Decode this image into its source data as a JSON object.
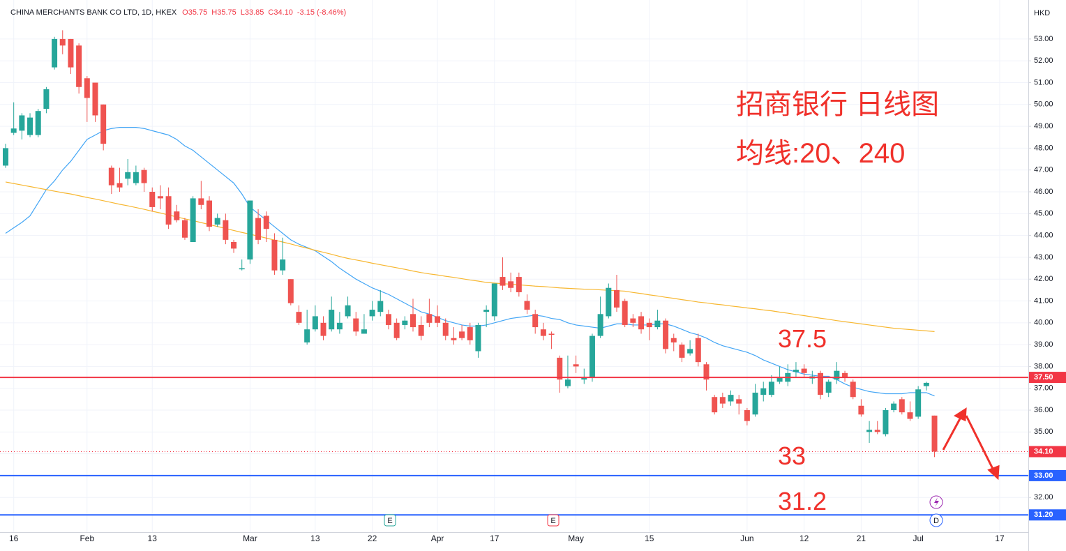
{
  "chart_data": {
    "type": "candlestick",
    "title": "CHINA MERCHANTS BANK CO LTD, 1D, HKEX",
    "ohlc_labels": [
      "O35.75",
      "H35.75",
      "L33.85",
      "C34.10",
      "-3.15 (-8.46%)"
    ],
    "currency": "HKD",
    "up_color": "#26a69a",
    "down_color": "#ef5350",
    "grid": true,
    "categories": [
      null,
      "16",
      null,
      null,
      null,
      null,
      null,
      null,
      null,
      null,
      "Feb",
      null,
      null,
      null,
      null,
      null,
      null,
      null,
      "13",
      null,
      null,
      null,
      null,
      null,
      null,
      null,
      null,
      null,
      null,
      null,
      "Mar",
      null,
      null,
      null,
      null,
      null,
      null,
      null,
      "13",
      null,
      null,
      null,
      null,
      null,
      null,
      "22",
      null,
      null,
      null,
      null,
      null,
      null,
      null,
      "Apr",
      null,
      null,
      null,
      null,
      null,
      null,
      "17",
      null,
      null,
      null,
      null,
      null,
      null,
      null,
      null,
      null,
      "May",
      null,
      null,
      null,
      null,
      null,
      null,
      null,
      null,
      "15",
      null,
      null,
      null,
      null,
      null,
      null,
      null,
      null,
      null,
      null,
      null,
      "Jun",
      null,
      null,
      null,
      null,
      null,
      null,
      "12",
      null,
      null,
      null,
      null,
      null,
      null,
      "21",
      null,
      null,
      null,
      null,
      null,
      null,
      "Jul",
      null,
      null,
      null,
      null,
      null,
      null,
      null,
      null,
      null,
      "17",
      null,
      null
    ],
    "open": [
      47.2,
      48.7,
      48.8,
      48.6,
      48.6,
      49.8,
      51.7,
      53.0,
      53.0,
      52.7,
      51.2,
      51.0,
      50.0,
      47.1,
      46.4,
      46.6,
      46.4,
      47.0,
      46.0,
      45.8,
      45.8,
      45.1,
      44.7,
      43.7,
      45.7,
      45.6,
      44.5,
      44.7,
      43.7,
      42.45,
      42.9,
      44.8,
      44.9,
      43.8,
      42.4,
      42.0,
      40.5,
      39.1,
      39.7,
      40.0,
      39.7,
      39.7,
      40.3,
      40.2,
      39.5,
      40.3,
      40.5,
      40.4,
      40.0,
      39.9,
      40.4,
      39.9,
      40.4,
      40.3,
      40.0,
      39.3,
      39.6,
      39.8,
      38.7,
      40.5,
      40.3,
      42.1,
      41.9,
      42.1,
      41.0,
      40.4,
      39.7,
      39.5,
      38.4,
      37.1,
      38.1,
      37.4,
      37.5,
      39.4,
      40.3,
      41.5,
      41.0,
      40.2,
      40.3,
      40.0,
      39.8,
      40.1,
      39.3,
      39.0,
      38.6,
      39.3,
      38.1,
      36.6,
      36.6,
      36.4,
      36.5,
      36.0,
      35.8,
      36.7,
      36.7,
      37.3,
      37.3,
      37.75,
      37.9,
      37.45,
      37.7,
      36.8,
      37.4,
      37.7,
      37.3,
      36.2,
      35.0,
      35.1,
      34.9,
      36.0,
      36.5,
      35.9,
      35.7,
      37.1,
      35.75,
      null,
      null,
      null,
      null,
      null,
      null,
      null,
      null,
      null,
      null
    ],
    "high": [
      48.2,
      50.1,
      49.6,
      49.6,
      49.8,
      50.8,
      53.1,
      53.4,
      53.0,
      52.8,
      51.3,
      51.0,
      50.0,
      47.2,
      47.1,
      47.5,
      47.2,
      47.1,
      46.2,
      46.3,
      46.2,
      45.4,
      44.8,
      45.8,
      46.5,
      45.8,
      45.0,
      45.0,
      43.8,
      42.9,
      45.6,
      45.2,
      45.1,
      44.1,
      43.9,
      42.0,
      40.8,
      40.6,
      40.8,
      40.3,
      41.2,
      40.5,
      41.2,
      40.5,
      40.4,
      41.0,
      41.5,
      40.6,
      40.2,
      40.3,
      41.1,
      40.3,
      41.1,
      40.8,
      40.2,
      39.8,
      39.9,
      40.0,
      40.0,
      40.8,
      41.8,
      43.0,
      42.3,
      42.3,
      41.3,
      40.6,
      40.0,
      39.6,
      38.5,
      38.5,
      38.5,
      37.9,
      39.5,
      41.2,
      41.8,
      42.2,
      41.1,
      40.4,
      40.5,
      40.2,
      40.6,
      40.2,
      39.5,
      39.1,
      39.2,
      39.5,
      38.2,
      36.7,
      36.8,
      36.9,
      36.7,
      36.1,
      37.2,
      37.3,
      37.6,
      38.0,
      38.1,
      38.2,
      38.1,
      37.8,
      37.8,
      37.4,
      38.2,
      37.8,
      37.4,
      36.5,
      35.5,
      35.5,
      36.1,
      36.4,
      36.6,
      36.4,
      37.1,
      37.3,
      35.75,
      null,
      null,
      null,
      null,
      null,
      null,
      null,
      null,
      null,
      null
    ],
    "low": [
      47.1,
      48.6,
      48.4,
      48.5,
      48.5,
      49.6,
      51.6,
      52.3,
      51.4,
      50.5,
      49.2,
      49.2,
      47.9,
      45.9,
      46.0,
      46.3,
      46.3,
      46.0,
      45.1,
      45.2,
      44.3,
      44.6,
      43.8,
      43.7,
      45.2,
      44.2,
      44.4,
      43.6,
      43.2,
      42.4,
      42.7,
      43.6,
      43.7,
      42.2,
      42.2,
      40.8,
      39.9,
      39.0,
      39.6,
      39.2,
      39.6,
      39.5,
      40.2,
      39.4,
      39.5,
      40.1,
      40.3,
      39.7,
      39.2,
      39.7,
      39.6,
      39.2,
      39.8,
      39.8,
      39.2,
      39.0,
      39.2,
      39.0,
      38.4,
      39.8,
      40.1,
      41.5,
      41.4,
      41.2,
      40.4,
      39.5,
      39.2,
      38.8,
      36.8,
      37.0,
      37.7,
      37.2,
      37.3,
      39.3,
      40.2,
      40.5,
      39.8,
      39.8,
      39.5,
      39.2,
      39.7,
      38.6,
      38.7,
      38.2,
      38.5,
      38.0,
      36.9,
      35.8,
      36.1,
      36.2,
      35.8,
      35.3,
      35.7,
      36.4,
      36.6,
      37.2,
      37.1,
      37.5,
      37.5,
      37.2,
      36.5,
      36.6,
      37.2,
      37.3,
      36.5,
      35.7,
      34.5,
      34.9,
      34.8,
      35.9,
      35.8,
      35.5,
      35.6,
      36.9,
      33.85,
      null,
      null,
      null,
      null,
      null,
      null,
      null,
      null,
      null,
      null
    ],
    "close": [
      48.0,
      48.9,
      49.5,
      49.4,
      49.7,
      50.7,
      53.0,
      52.7,
      51.7,
      50.8,
      50.3,
      49.5,
      48.2,
      46.3,
      46.2,
      46.9,
      46.9,
      46.4,
      45.3,
      45.7,
      44.5,
      44.7,
      43.9,
      45.7,
      45.4,
      44.4,
      44.8,
      43.8,
      43.4,
      42.5,
      45.6,
      43.8,
      44.3,
      42.4,
      42.9,
      40.9,
      40.0,
      39.7,
      40.3,
      39.4,
      40.6,
      40.0,
      40.8,
      39.6,
      39.7,
      40.6,
      41.0,
      39.9,
      39.3,
      40.1,
      39.8,
      39.4,
      40.0,
      40.0,
      39.4,
      39.2,
      39.3,
      39.2,
      39.9,
      40.6,
      41.8,
      41.7,
      41.6,
      41.4,
      40.6,
      39.8,
      39.4,
      39.45,
      37.4,
      37.4,
      38.0,
      37.5,
      39.4,
      40.4,
      41.6,
      40.7,
      39.9,
      40.0,
      39.7,
      39.8,
      40.1,
      38.8,
      39.1,
      38.4,
      38.8,
      38.2,
      37.4,
      35.9,
      36.3,
      36.7,
      36.3,
      35.5,
      36.8,
      37.0,
      37.3,
      37.5,
      37.7,
      37.85,
      37.7,
      37.55,
      36.7,
      37.3,
      37.8,
      37.5,
      36.6,
      35.8,
      35.1,
      35.0,
      36.0,
      36.3,
      35.9,
      35.6,
      36.95,
      37.25,
      34.1,
      null,
      null,
      null,
      null,
      null,
      null,
      null,
      null,
      null,
      null
    ],
    "lines": [
      {
        "color": "#42a5f5",
        "values": [
          44.1,
          44.35,
          44.6,
          44.9,
          45.5,
          46.1,
          46.5,
          47.0,
          47.4,
          47.9,
          48.4,
          48.6,
          48.8,
          48.9,
          48.95,
          48.95,
          48.95,
          48.9,
          48.8,
          48.7,
          48.6,
          48.4,
          48.1,
          47.9,
          47.6,
          47.3,
          47.0,
          46.7,
          46.4,
          45.9,
          45.3,
          45.0,
          44.7,
          44.4,
          44.1,
          43.8,
          43.6,
          43.45,
          43.3,
          43.05,
          42.8,
          42.5,
          42.25,
          42.0,
          41.8,
          41.6,
          41.45,
          41.3,
          41.1,
          40.9,
          40.7,
          40.5,
          40.4,
          40.25,
          40.1,
          40.0,
          39.9,
          39.85,
          39.85,
          39.9,
          40.0,
          40.1,
          40.2,
          40.25,
          40.3,
          40.35,
          40.3,
          40.2,
          40.15,
          40.0,
          39.9,
          39.85,
          39.8,
          39.75,
          39.85,
          39.95,
          39.95,
          39.9,
          39.9,
          39.9,
          39.95,
          39.95,
          39.85,
          39.7,
          39.55,
          39.45,
          39.3,
          39.1,
          38.95,
          38.85,
          38.75,
          38.65,
          38.5,
          38.3,
          38.15,
          38.0,
          37.85,
          37.75,
          37.65,
          37.6,
          37.55,
          37.55,
          37.4,
          37.2,
          37.05,
          36.95,
          36.85,
          36.8,
          36.75,
          36.75,
          36.75,
          36.8,
          36.8,
          36.8,
          36.65,
          null,
          null,
          null,
          null,
          null,
          null,
          null,
          null,
          null,
          null
        ]
      },
      {
        "color": "#f7b731",
        "values": [
          46.45,
          46.38,
          46.31,
          46.24,
          46.17,
          46.1,
          46.03,
          45.96,
          45.9,
          45.82,
          45.74,
          45.67,
          45.59,
          45.51,
          45.43,
          45.36,
          45.28,
          45.2,
          45.11,
          45.03,
          44.94,
          44.85,
          44.76,
          44.68,
          44.59,
          44.5,
          44.41,
          44.32,
          44.23,
          44.14,
          44.06,
          43.97,
          43.88,
          43.79,
          43.7,
          43.61,
          43.51,
          43.42,
          43.32,
          43.23,
          43.14,
          43.04,
          42.95,
          42.88,
          42.81,
          42.73,
          42.66,
          42.59,
          42.52,
          42.45,
          42.37,
          42.3,
          42.24,
          42.19,
          42.13,
          42.08,
          42.02,
          41.96,
          41.91,
          41.85,
          41.82,
          41.79,
          41.77,
          41.74,
          41.71,
          41.68,
          41.66,
          41.63,
          41.6,
          41.58,
          41.56,
          41.54,
          41.53,
          41.51,
          41.49,
          41.47,
          41.45,
          41.39,
          41.34,
          41.28,
          41.23,
          41.17,
          41.12,
          41.06,
          41.01,
          40.95,
          40.91,
          40.86,
          40.82,
          40.77,
          40.73,
          40.68,
          40.64,
          40.59,
          40.55,
          40.49,
          40.44,
          40.38,
          40.33,
          40.27,
          40.21,
          40.16,
          40.1,
          40.05,
          40.0,
          39.95,
          39.9,
          39.85,
          39.8,
          39.75,
          39.72,
          39.69,
          39.66,
          39.63,
          39.6,
          null,
          null,
          null,
          null,
          null,
          null,
          null,
          null,
          null,
          null
        ]
      }
    ],
    "levels": [
      {
        "value": 37.5,
        "label": "37.50",
        "color": "#f23645"
      },
      {
        "value": 33,
        "label": "33.00",
        "color": "#2962ff"
      },
      {
        "value": 31.2,
        "label": "31.20",
        "color": "#2962ff"
      }
    ],
    "last_price": {
      "value": 34.1,
      "label": "34.10",
      "color": "#f23645"
    },
    "annotations": [
      "招商银行 日线图",
      "均线:20、240",
      "37.5",
      "33",
      "31.2"
    ],
    "ylim": [
      30.41,
      54.53
    ],
    "yticks": [
      {
        "value": 32,
        "label": "32.00"
      },
      {
        "value": 33,
        "label": "33.00"
      },
      {
        "value": 34,
        "label": "34.00"
      },
      {
        "value": 35,
        "label": "35.00"
      },
      {
        "value": 36,
        "label": "36.00"
      },
      {
        "value": 37,
        "label": "37.00"
      },
      {
        "value": 38,
        "label": "38.00"
      },
      {
        "value": 39,
        "label": "39.00"
      },
      {
        "value": 40,
        "label": "40.00"
      },
      {
        "value": 41,
        "label": "41.00"
      },
      {
        "value": 42,
        "label": "42.00"
      },
      {
        "value": 43,
        "label": "43.00"
      },
      {
        "value": 44,
        "label": "44.00"
      },
      {
        "value": 45,
        "label": "45.00"
      },
      {
        "value": 46,
        "label": "46.00"
      },
      {
        "value": 47,
        "label": "47.00"
      },
      {
        "value": 48,
        "label": "48.00"
      },
      {
        "value": 49,
        "label": "49.00"
      },
      {
        "value": 50,
        "label": "50.00"
      },
      {
        "value": 51,
        "label": "51.00"
      },
      {
        "value": 52,
        "label": "52.00"
      },
      {
        "value": 53,
        "label": "53.00"
      }
    ]
  }
}
